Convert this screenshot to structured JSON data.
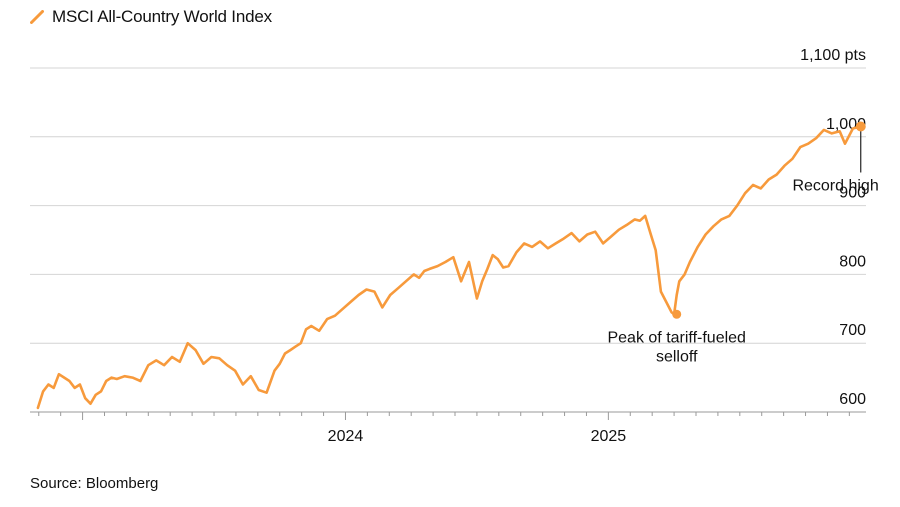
{
  "colors": {
    "series": "#F79A3C",
    "grid": "#d4d4d4",
    "axis": "#9a9a9a",
    "text": "#111111",
    "annotation_line": "#222222"
  },
  "chart_data": {
    "type": "line",
    "title": "MSCI All-Country World Index",
    "source": "Source: Bloomberg",
    "xlabel": "",
    "ylabel": "pts",
    "ylim": [
      600,
      1100
    ],
    "yticks": [
      600,
      700,
      800,
      900,
      1000,
      1100
    ],
    "ytick_labels": [
      "600",
      "700",
      "800",
      "900",
      "1,000",
      "1,100 pts"
    ],
    "x_range": [
      2022.8,
      2025.98
    ],
    "xticks": [
      {
        "value": 2024.0,
        "label": "2024"
      },
      {
        "value": 2025.0,
        "label": "2025"
      }
    ],
    "legend": "top-left",
    "series": [
      {
        "name": "MSCI All-Country World Index",
        "x": [
          2022.83,
          2022.85,
          2022.87,
          2022.89,
          2022.91,
          2022.93,
          2022.95,
          2022.97,
          2022.99,
          2023.01,
          2023.03,
          2023.05,
          2023.07,
          2023.09,
          2023.11,
          2023.13,
          2023.16,
          2023.19,
          2023.22,
          2023.25,
          2023.28,
          2023.31,
          2023.34,
          2023.37,
          2023.4,
          2023.43,
          2023.46,
          2023.49,
          2023.52,
          2023.55,
          2023.58,
          2023.61,
          2023.64,
          2023.67,
          2023.7,
          2023.73,
          2023.75,
          2023.77,
          2023.79,
          2023.81,
          2023.83,
          2023.85,
          2023.87,
          2023.9,
          2023.93,
          2023.96,
          2023.99,
          2024.02,
          2024.05,
          2024.08,
          2024.11,
          2024.14,
          2024.17,
          2024.2,
          2024.23,
          2024.26,
          2024.28,
          2024.3,
          2024.32,
          2024.35,
          2024.38,
          2024.41,
          2024.44,
          2024.47,
          2024.5,
          2024.52,
          2024.54,
          2024.56,
          2024.58,
          2024.6,
          2024.62,
          2024.65,
          2024.68,
          2024.71,
          2024.74,
          2024.77,
          2024.8,
          2024.83,
          2024.86,
          2024.89,
          2024.92,
          2024.95,
          2024.98,
          2025.01,
          2025.04,
          2025.07,
          2025.1,
          2025.12,
          2025.14,
          2025.16,
          2025.18,
          2025.2,
          2025.22,
          2025.24,
          2025.25,
          2025.26,
          2025.27,
          2025.29,
          2025.31,
          2025.34,
          2025.37,
          2025.4,
          2025.43,
          2025.46,
          2025.49,
          2025.52,
          2025.55,
          2025.58,
          2025.61,
          2025.64,
          2025.67,
          2025.7,
          2025.73,
          2025.76,
          2025.79,
          2025.82,
          2025.85,
          2025.88,
          2025.9,
          2025.93,
          2025.96
        ],
        "values": [
          606,
          630,
          640,
          635,
          655,
          650,
          645,
          635,
          640,
          620,
          612,
          625,
          630,
          645,
          650,
          648,
          652,
          650,
          645,
          668,
          675,
          668,
          680,
          673,
          700,
          690,
          670,
          680,
          678,
          668,
          660,
          640,
          652,
          632,
          628,
          660,
          670,
          685,
          690,
          695,
          700,
          720,
          725,
          718,
          735,
          740,
          750,
          760,
          770,
          778,
          775,
          752,
          770,
          780,
          790,
          800,
          795,
          805,
          808,
          812,
          818,
          825,
          790,
          818,
          765,
          790,
          808,
          828,
          822,
          810,
          812,
          832,
          845,
          840,
          848,
          838,
          845,
          852,
          860,
          848,
          858,
          862,
          845,
          855,
          865,
          872,
          880,
          878,
          885,
          860,
          835,
          775,
          760,
          745,
          742,
          770,
          790,
          800,
          818,
          840,
          858,
          870,
          880,
          885,
          900,
          918,
          930,
          925,
          938,
          945,
          958,
          968,
          985,
          990,
          998,
          1010,
          1005,
          1008,
          990,
          1012,
          1015
        ]
      }
    ],
    "annotations": [
      {
        "text_lines": [
          "Peak of tariff-fueled",
          "selloff"
        ],
        "x": 2025.26,
        "y": 742
      },
      {
        "text_lines": [
          "Record high"
        ],
        "x": 2025.96,
        "y": 1015
      }
    ]
  }
}
